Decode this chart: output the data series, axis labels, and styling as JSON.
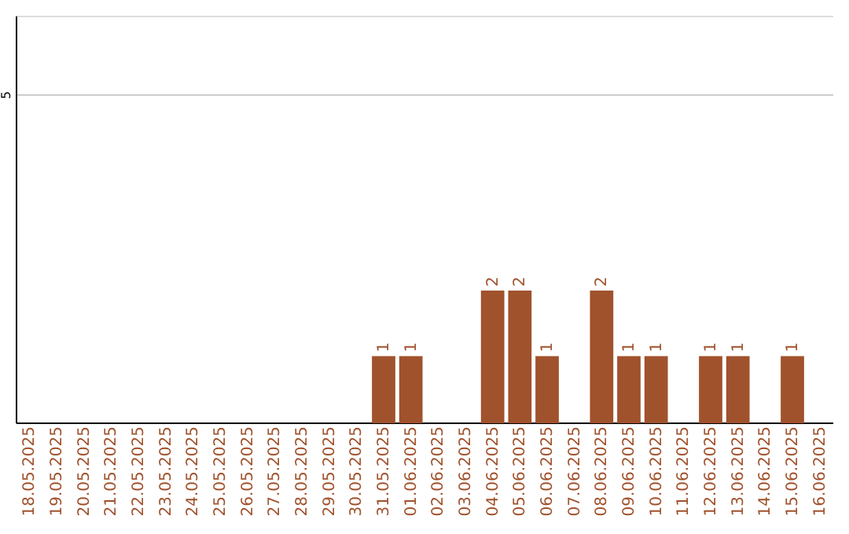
{
  "chart_data": {
    "type": "bar",
    "categories": [
      "18.05.2025",
      "19.05.2025",
      "20.05.2025",
      "21.05.2025",
      "22.05.2025",
      "23.05.2025",
      "24.05.2025",
      "25.05.2025",
      "26.05.2025",
      "27.05.2025",
      "28.05.2025",
      "29.05.2025",
      "30.05.2025",
      "31.05.2025",
      "01.06.2025",
      "02.06.2025",
      "03.06.2025",
      "04.06.2025",
      "05.06.2025",
      "06.06.2025",
      "07.06.2025",
      "08.06.2025",
      "09.06.2025",
      "10.06.2025",
      "11.06.2025",
      "12.06.2025",
      "13.06.2025",
      "14.06.2025",
      "15.06.2025",
      "16.06.2025"
    ],
    "values": [
      null,
      null,
      null,
      null,
      null,
      null,
      null,
      null,
      null,
      null,
      null,
      null,
      null,
      1,
      1,
      null,
      null,
      2,
      2,
      1,
      null,
      2,
      1,
      1,
      null,
      1,
      1,
      null,
      1,
      null
    ],
    "data_labels": true,
    "color": "#a0522d",
    "ylim": [
      0,
      6.2
    ],
    "yticks": [
      5
    ],
    "grid": "y"
  }
}
